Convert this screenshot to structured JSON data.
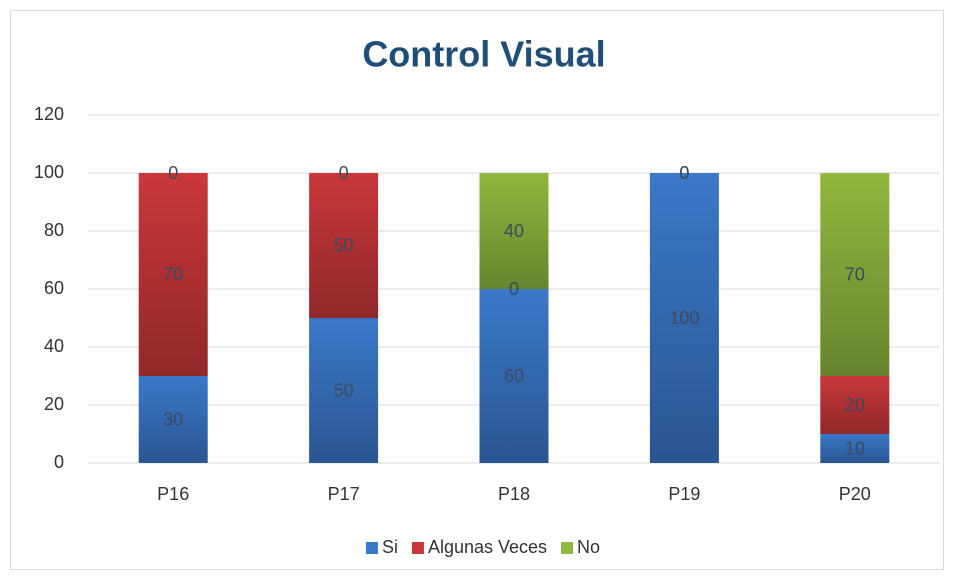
{
  "chart_data": {
    "type": "stacked_bar",
    "title": "Control Visual",
    "categories": [
      "P16",
      "P17",
      "P18",
      "P19",
      "P20"
    ],
    "series": [
      {
        "name": "Si",
        "color": "#3a78c9",
        "values": [
          30,
          50,
          60,
          100,
          10
        ]
      },
      {
        "name": "Algunas Veces",
        "color": "#c8373a",
        "values": [
          70,
          50,
          0,
          0,
          20
        ]
      },
      {
        "name": "No",
        "color": "#8fb83e",
        "values": [
          0,
          0,
          40,
          0,
          70
        ]
      }
    ],
    "ylim": [
      0,
      120
    ],
    "yticks": [
      0,
      20,
      40,
      60,
      80,
      100,
      120
    ],
    "grid": true,
    "legend": "bottom"
  }
}
